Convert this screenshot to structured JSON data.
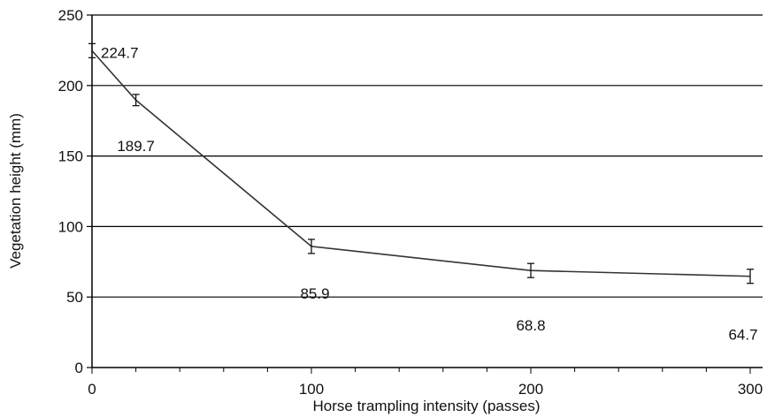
{
  "chart_data": {
    "type": "line",
    "xlabel": "Horse trampling intensity (passes)",
    "ylabel": "Vegetation height (mm)",
    "xlim": [
      0,
      300
    ],
    "ylim": [
      0,
      250
    ],
    "x_ticks": [
      "0",
      "100",
      "200",
      "300"
    ],
    "y_ticks": [
      "0",
      "50",
      "100",
      "150",
      "200",
      "250"
    ],
    "grid": "horizontal",
    "series": [
      {
        "x": [
          0,
          20,
          100,
          200,
          300
        ],
        "values": [
          224.7,
          189.7,
          85.9,
          68.8,
          64.7
        ],
        "error": [
          5,
          4,
          5,
          5,
          5
        ]
      }
    ],
    "data_labels": [
      "224.7",
      "189.7",
      "85.9",
      "68.8",
      "64.7"
    ],
    "line_color": "#333333",
    "grid_color": "#000000"
  }
}
